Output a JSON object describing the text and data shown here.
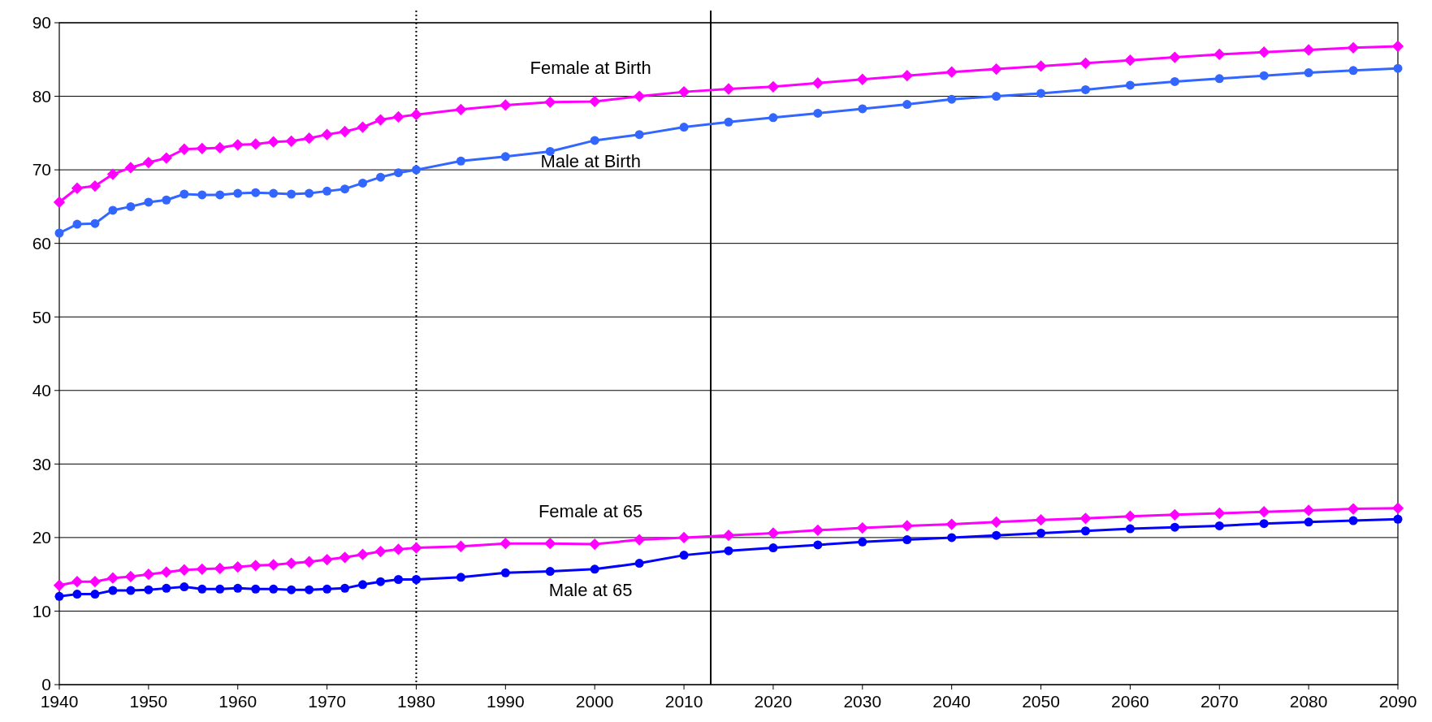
{
  "chart_data": {
    "type": "line",
    "x": [
      1940,
      1942,
      1944,
      1946,
      1948,
      1950,
      1952,
      1954,
      1956,
      1958,
      1960,
      1962,
      1964,
      1966,
      1968,
      1970,
      1972,
      1974,
      1976,
      1978,
      1980,
      1985,
      1990,
      1995,
      2000,
      2005,
      2010,
      2015,
      2020,
      2025,
      2030,
      2035,
      2040,
      2045,
      2050,
      2055,
      2060,
      2065,
      2070,
      2075,
      2080,
      2085,
      2090
    ],
    "xlim": [
      1940,
      2090
    ],
    "xticks": [
      1940,
      1950,
      1960,
      1970,
      1980,
      1990,
      2000,
      2010,
      2020,
      2030,
      2040,
      2050,
      2060,
      2070,
      2080,
      2090
    ],
    "ylim": [
      0,
      90
    ],
    "yticks": [
      0,
      10,
      20,
      30,
      40,
      50,
      60,
      70,
      80,
      90
    ],
    "grid": "y",
    "series": [
      {
        "name": "Female at Birth",
        "color": "#ff00ff",
        "marker": "diamond",
        "values": [
          65.6,
          67.5,
          67.8,
          69.4,
          70.3,
          71.0,
          71.6,
          72.8,
          72.9,
          73.0,
          73.4,
          73.5,
          73.8,
          73.9,
          74.3,
          74.8,
          75.2,
          75.8,
          76.8,
          77.2,
          77.5,
          78.2,
          78.8,
          79.2,
          79.3,
          80.0,
          80.6,
          81.0,
          81.3,
          81.8,
          82.3,
          82.8,
          83.3,
          83.7,
          84.1,
          84.5,
          84.9,
          85.3,
          85.7,
          86.0,
          86.3,
          86.6,
          86.8
        ]
      },
      {
        "name": "Male at Birth",
        "color": "#3366ff",
        "marker": "circle",
        "values": [
          61.4,
          62.6,
          62.7,
          64.5,
          65.0,
          65.6,
          65.9,
          66.7,
          66.6,
          66.6,
          66.8,
          66.9,
          66.8,
          66.7,
          66.8,
          67.1,
          67.4,
          68.2,
          69.0,
          69.6,
          70.0,
          71.2,
          71.8,
          72.5,
          74.0,
          74.8,
          75.8,
          76.5,
          77.1,
          77.7,
          78.3,
          78.9,
          79.6,
          80.0,
          80.4,
          80.9,
          81.5,
          82.0,
          82.4,
          82.8,
          83.2,
          83.5,
          83.8
        ]
      },
      {
        "name": "Female at 65",
        "color": "#ff00ff",
        "marker": "diamond",
        "values": [
          13.5,
          14.0,
          14.0,
          14.5,
          14.7,
          15.0,
          15.3,
          15.6,
          15.7,
          15.8,
          16.0,
          16.2,
          16.3,
          16.5,
          16.7,
          17.0,
          17.3,
          17.7,
          18.1,
          18.4,
          18.6,
          18.8,
          19.2,
          19.2,
          19.1,
          19.7,
          20.0,
          20.3,
          20.6,
          21.0,
          21.3,
          21.6,
          21.8,
          22.1,
          22.4,
          22.6,
          22.9,
          23.1,
          23.3,
          23.5,
          23.7,
          23.9,
          24.0
        ]
      },
      {
        "name": "Male at 65",
        "color": "#0000ff",
        "marker": "circle",
        "values": [
          12.0,
          12.3,
          12.3,
          12.8,
          12.8,
          12.9,
          13.1,
          13.3,
          13.0,
          13.0,
          13.1,
          13.0,
          13.0,
          12.9,
          12.9,
          13.0,
          13.1,
          13.6,
          14.0,
          14.3,
          14.3,
          14.6,
          15.2,
          15.4,
          15.7,
          16.5,
          17.6,
          18.2,
          18.6,
          19.0,
          19.4,
          19.7,
          20.0,
          20.3,
          20.6,
          20.9,
          21.2,
          21.4,
          21.6,
          21.9,
          22.1,
          22.3,
          22.5
        ]
      }
    ],
    "ref_lines": [
      {
        "axis": "x",
        "value": 1980,
        "line_style": "dotted",
        "color": "#000000"
      },
      {
        "axis": "x",
        "value": 2013,
        "line_style": "solid",
        "color": "#000000"
      }
    ]
  }
}
